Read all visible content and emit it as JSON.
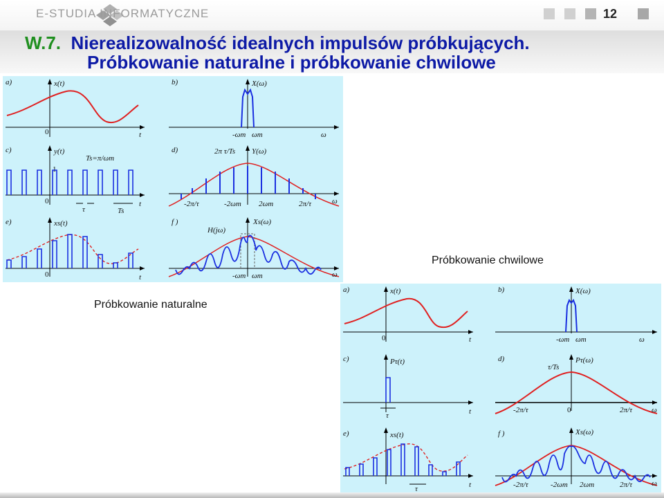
{
  "header": {
    "logo_text": "E-STUDIA INFORMATYCZNE",
    "page_number": "12",
    "icons": [
      "diamond-logo-icon"
    ]
  },
  "title": {
    "number": "W.7.",
    "line1": "Nierealizowalność idealnych impulsów próbkujących.",
    "line2": "Próbkowanie naturalne i próbkowanie chwilowe"
  },
  "colors": {
    "panel_bg": "#cdf2fb",
    "signal": "#e02020",
    "samples": "#1a2fe0",
    "title": "#0d1aa6",
    "number": "#1f8f1f"
  },
  "natural": {
    "caption": "Próbkowanie naturalne",
    "a": {
      "tag": "a)",
      "ylabel": "x(t)",
      "origin": "0",
      "xlabel": "t"
    },
    "b": {
      "tag": "b)",
      "ylabel": "X(ω)",
      "tick_neg": "-ωm",
      "tick_pos": "ωm",
      "xlabel": "ω"
    },
    "c": {
      "tag": "c)",
      "ylabel": "y(t)",
      "period": "Ts=π/ωm",
      "one": "1",
      "origin": "0",
      "tau": "τ",
      "ts": "Ts",
      "xlabel": "t"
    },
    "d": {
      "tag": "d)",
      "ylabel": "Y(ω)",
      "peak": "2π τ/Ts",
      "ticks": [
        "-2π/τ",
        "-2ωm",
        "2ωm",
        "2π/τ"
      ],
      "xlabel": "ω"
    },
    "e": {
      "tag": "e)",
      "ylabel": "xs(t)",
      "origin": "0",
      "xlabel": "t"
    },
    "f": {
      "tag": "f )",
      "ylabel": "Xs(ω)",
      "filter": "H(jω)",
      "tick_neg": "-ωm",
      "tick_pos": "ωm",
      "xlabel": "ω"
    }
  },
  "instant": {
    "caption": "Próbkowanie chwilowe",
    "a": {
      "tag": "a)",
      "ylabel": "x(t)",
      "origin": "0",
      "xlabel": "t"
    },
    "b": {
      "tag": "b)",
      "ylabel": "X(ω)",
      "tick_neg": "-ωm",
      "tick_pos": "ωm",
      "xlabel": "ω"
    },
    "c": {
      "tag": "c)",
      "ylabel": "Pτ(t)",
      "tau": "τ",
      "xlabel": "t"
    },
    "d": {
      "tag": "d)",
      "ylabel": "Pτ(ω)",
      "peak": "τ/Ts",
      "origin": "0",
      "ticks": [
        "-2π/τ",
        "2π/τ"
      ],
      "xlabel": "ω"
    },
    "e": {
      "tag": "e)",
      "ylabel": "xs(t)",
      "tau": "τ",
      "xlabel": "t"
    },
    "f": {
      "tag": "f )",
      "ylabel": "Xs(ω)",
      "ticks": [
        "-2π/τ",
        "-2ωm",
        "2ωm",
        "2π/τ"
      ],
      "xlabel": "ω"
    }
  }
}
